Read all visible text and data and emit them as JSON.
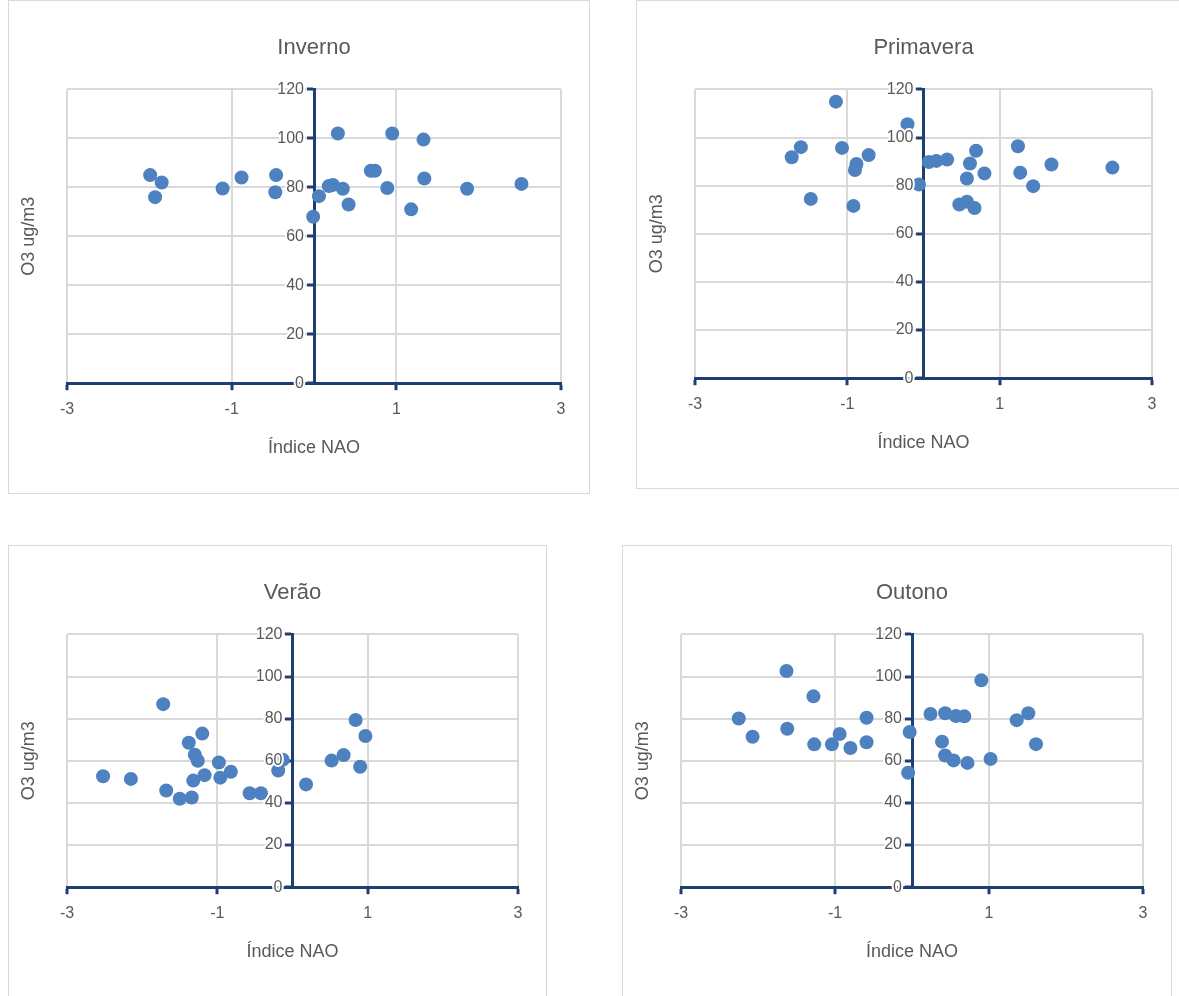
{
  "chart_data": [
    {
      "type": "scatter",
      "title": "Inverno",
      "xlabel": "Índice NAO",
      "ylabel": "O3 ug/m3",
      "color": "#4e81c0",
      "marker": "circle",
      "grid": true,
      "xlim": [
        -3,
        3
      ],
      "xticks": [
        -3,
        -1,
        1,
        3
      ],
      "ylim": [
        0,
        120
      ],
      "yticks": [
        0,
        20,
        40,
        60,
        80,
        100,
        120
      ],
      "x": [
        -1.99,
        -1.85,
        -1.93,
        -1.11,
        -0.88,
        -0.46,
        -0.47,
        -0.01,
        0.06,
        0.18,
        0.23,
        0.35,
        0.29,
        0.42,
        0.69,
        0.74,
        0.89,
        0.95,
        1.18,
        1.33,
        1.34,
        1.86,
        2.52
      ],
      "values": [
        85,
        82,
        76,
        79.5,
        84,
        85,
        78,
        68,
        76.4,
        80.5,
        81,
        79.4,
        102,
        73,
        86.8,
        86.8,
        79.7,
        102,
        71,
        99.5,
        83.6,
        79.4,
        81.4
      ]
    },
    {
      "type": "scatter",
      "title": "Primavera",
      "xlabel": "Índice NAO",
      "ylabel": "O3 ug/m3",
      "color": "#4e81c0",
      "marker": "circle",
      "grid": true,
      "xlim": [
        -3,
        3
      ],
      "xticks": [
        -3,
        -1,
        1,
        3
      ],
      "ylim": [
        0,
        120
      ],
      "yticks": [
        0,
        20,
        40,
        60,
        80,
        100,
        120
      ],
      "x": [
        -1.73,
        -1.61,
        -1.48,
        -1.15,
        -1.07,
        -0.92,
        -0.9,
        -0.88,
        -0.72,
        -0.21,
        -0.06,
        0.07,
        0.17,
        0.31,
        0.47,
        0.57,
        0.67,
        0.57,
        0.61,
        0.69,
        0.8,
        1.24,
        1.27,
        1.44,
        1.68,
        2.48
      ],
      "values": [
        91.8,
        96,
        74.5,
        114.9,
        95.7,
        71.6,
        86.5,
        89,
        92.7,
        105.5,
        80.5,
        89.8,
        90.3,
        90.9,
        72.2,
        73.3,
        70.7,
        83,
        89.2,
        94.5,
        85.1,
        96.4,
        85.4,
        79.8,
        88.8,
        87.5
      ]
    },
    {
      "type": "scatter",
      "title": "Verão",
      "xlabel": "Índice NAO",
      "ylabel": "O3 ug/m3",
      "color": "#4e81c0",
      "marker": "circle",
      "grid": true,
      "xlim": [
        -3,
        3
      ],
      "xticks": [
        -3,
        -1,
        1,
        3
      ],
      "ylim": [
        0,
        120
      ],
      "yticks": [
        0,
        20,
        40,
        60,
        80,
        100,
        120
      ],
      "x": [
        -2.52,
        -2.15,
        -1.72,
        -1.68,
        -1.5,
        -1.34,
        -1.38,
        -1.2,
        -1.3,
        -1.26,
        -1.32,
        -1.17,
        -0.98,
        -0.96,
        -0.82,
        -0.57,
        -0.42,
        -0.19,
        -0.13,
        0.18,
        0.52,
        0.68,
        0.84,
        0.97,
        0.9
      ],
      "values": [
        52.7,
        51.4,
        86.9,
        45.9,
        42,
        42.6,
        68.6,
        72.9,
        62.9,
        60,
        50.6,
        53.2,
        59.2,
        52,
        54.8,
        44.6,
        44.6,
        55.4,
        60.5,
        48.8,
        60.1,
        62.7,
        79.4,
        71.8,
        57.2
      ]
    },
    {
      "type": "scatter",
      "title": "Outono",
      "xlabel": "Índice NAO",
      "ylabel": "O3 ug/m3",
      "color": "#4e81c0",
      "marker": "circle",
      "grid": true,
      "xlim": [
        -3,
        3
      ],
      "xticks": [
        -3,
        -1,
        1,
        3
      ],
      "ylim": [
        0,
        120
      ],
      "yticks": [
        0,
        20,
        40,
        60,
        80,
        100,
        120
      ],
      "x": [
        -2.25,
        -2.07,
        -1.63,
        -1.62,
        -1.28,
        -1.27,
        -1.04,
        -0.94,
        -0.8,
        -0.59,
        -0.59,
        -0.03,
        -0.05,
        0.24,
        0.43,
        0.57,
        0.68,
        0.39,
        0.43,
        0.54,
        0.72,
        0.9,
        1.02,
        1.36,
        1.51,
        1.61
      ],
      "values": [
        80.1,
        71.4,
        102.6,
        75.2,
        90.6,
        67.8,
        67.8,
        72.7,
        66.1,
        80.4,
        68.8,
        73.7,
        54.3,
        82.2,
        82.6,
        81.3,
        81.1,
        69.1,
        62.5,
        60.2,
        59,
        98.2,
        60.9,
        79.3,
        82.6,
        67.9
      ]
    }
  ]
}
